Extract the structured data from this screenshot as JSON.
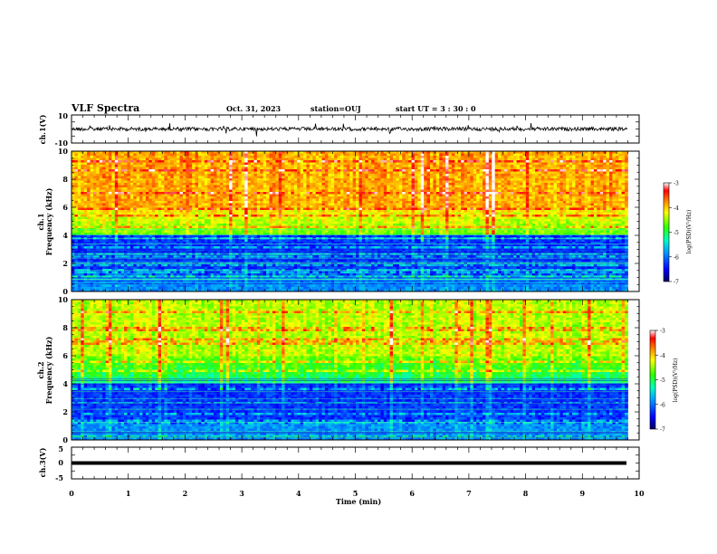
{
  "header": {
    "title": "VLF Spectra",
    "date": "Oct. 31, 2023",
    "station": "station=OUJ",
    "start": "start  UT =  3 : 30 : 0"
  },
  "chart_data": [
    {
      "type": "line",
      "panel": "ch1-waveform",
      "ylabel": "ch.1(V)",
      "ylim": [
        -10,
        10
      ],
      "ytick_labels": [
        "10",
        "-10"
      ],
      "xlim": [
        0,
        10
      ]
    },
    {
      "type": "heatmap",
      "panel": "ch1-spectrogram",
      "ylabel": "ch.1\nFrequency (kHz)",
      "ylim": [
        0,
        10
      ],
      "yticks": [
        0,
        2,
        4,
        6,
        8,
        10
      ],
      "xlim": [
        0,
        10
      ],
      "data_end_min": 9.8,
      "colorbar": {
        "label": "log(PSD)(V²/Hz)",
        "range": [
          -7,
          -3
        ],
        "ticks": [
          "-3",
          "-4",
          "-5",
          "-6",
          "-7"
        ]
      }
    },
    {
      "type": "heatmap",
      "panel": "ch2-spectrogram",
      "ylabel": "ch.2\nFrequency (kHz)",
      "ylim": [
        0,
        10
      ],
      "yticks": [
        0,
        2,
        4,
        6,
        8,
        10
      ],
      "xlim": [
        0,
        10
      ],
      "data_end_min": 9.8,
      "colorbar": {
        "label": "log(PSD)(V²/Hz)",
        "range": [
          -7,
          -3
        ],
        "ticks": [
          "-3",
          "-4",
          "-5",
          "-6",
          "-7"
        ]
      }
    },
    {
      "type": "line",
      "panel": "ch3-waveform",
      "ylabel": "ch.3(V)",
      "ylim": [
        -5,
        5
      ],
      "ytick_labels": [
        "5",
        "0",
        "-5"
      ],
      "xlim": [
        0,
        10
      ],
      "xlabel": "Time  (min)",
      "xtick_labels": [
        "0",
        "1",
        "2",
        "3",
        "4",
        "5",
        "6",
        "7",
        "8",
        "9",
        "10"
      ]
    }
  ],
  "colors": {
    "cb_stops": [
      "#000080",
      "#0000ff",
      "#00b0ff",
      "#00ffb0",
      "#30ff00",
      "#ffff00",
      "#ff8000",
      "#ff0000",
      "#ffffff"
    ]
  }
}
